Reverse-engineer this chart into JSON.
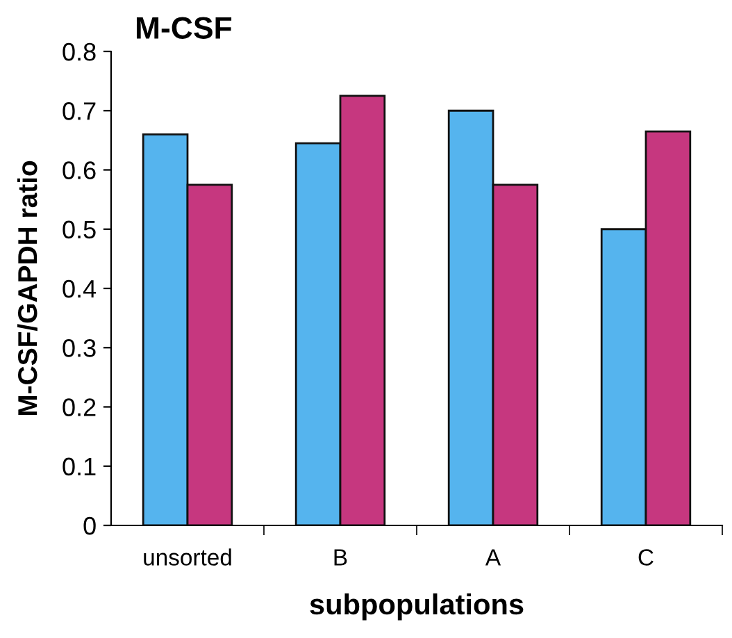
{
  "chart_data": {
    "type": "bar",
    "title": "M-CSF",
    "xlabel": "subpopulations",
    "ylabel": "M-CSF/GAPDH ratio",
    "categories": [
      "unsorted",
      "B",
      "A",
      "C"
    ],
    "series": [
      {
        "color": "#55b4ee",
        "values": [
          0.66,
          0.645,
          0.7,
          0.5
        ]
      },
      {
        "color": "#c6377f",
        "values": [
          0.575,
          0.725,
          0.575,
          0.665
        ]
      }
    ],
    "ylim": [
      0,
      0.8
    ],
    "yticks": [
      0,
      0.1,
      0.2,
      0.3,
      0.4,
      0.5,
      0.6,
      0.7,
      0.8
    ],
    "grid": false,
    "legend": false
  }
}
